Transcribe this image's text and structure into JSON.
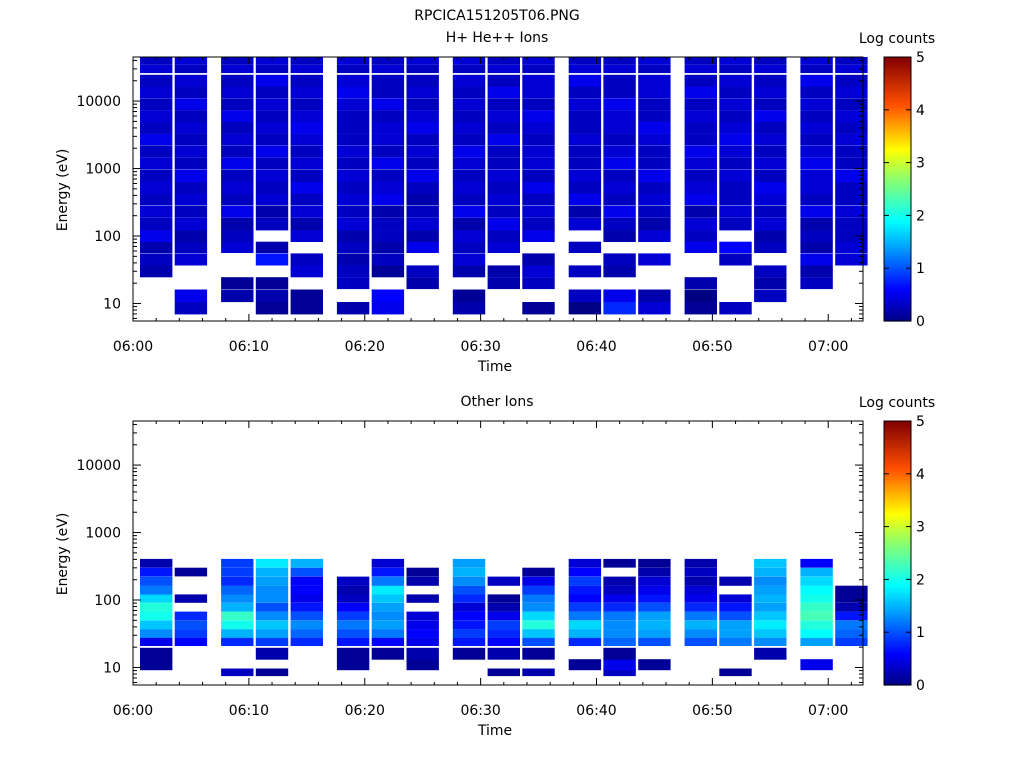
{
  "figure": {
    "title": "RPCICA151205T06.PNG"
  },
  "chart_data": [
    {
      "type": "heatmap",
      "title": "H+ He++ Ions",
      "xlabel": "Time",
      "ylabel": "Energy (eV)",
      "x_range": [
        "06:00",
        "07:03"
      ],
      "x_ticks": [
        "06:00",
        "06:10",
        "06:20",
        "06:30",
        "06:40",
        "06:50",
        "07:00"
      ],
      "y_scale": "log",
      "y_range": [
        5.5,
        45000
      ],
      "y_ticks": [
        "10",
        "100",
        "1000",
        "10000"
      ],
      "colorbar": {
        "label": "Log counts",
        "range": [
          0,
          5
        ],
        "ticks": [
          "0",
          "1",
          "2",
          "3",
          "4",
          "5"
        ]
      },
      "time_columns": [
        "06:02",
        "06:05",
        "06:09",
        "06:12",
        "06:15",
        "06:19",
        "06:22",
        "06:25",
        "06:29",
        "06:32",
        "06:35",
        "06:39",
        "06:42",
        "06:45",
        "06:49",
        "06:52",
        "06:55",
        "06:59",
        "07:02"
      ],
      "energy_rows": [
        {
          "eV": 8.5,
          "v": [
            -1,
            0.3,
            -1,
            0.1,
            0.1,
            0.2,
            0.5,
            -1,
            0.2,
            -1,
            0.1,
            0.0,
            0.8,
            0.4,
            0.1,
            0.3,
            -1,
            -1,
            -1
          ]
        },
        {
          "eV": 13,
          "v": [
            -1,
            0.5,
            0.2,
            0.2,
            0.1,
            -1,
            0.6,
            -1,
            0.1,
            -1,
            -1,
            0.3,
            0.5,
            0.2,
            0.0,
            -1,
            0.3,
            -1,
            -1
          ]
        },
        {
          "eV": 20,
          "v": [
            -1,
            -1,
            0.1,
            0.1,
            -1,
            0.3,
            -1,
            0.2,
            -1,
            0.2,
            0.3,
            -1,
            -1,
            -1,
            0.2,
            -1,
            0.2,
            0.3,
            -1
          ]
        },
        {
          "eV": 30,
          "v": [
            0.2,
            -1,
            -1,
            -1,
            0.4,
            0.3,
            0.1,
            0.3,
            0.2,
            0.2,
            0.4,
            0.3,
            0.2,
            -1,
            -1,
            -1,
            0.3,
            0.2,
            -1
          ]
        },
        {
          "eV": 45,
          "v": [
            0.3,
            0.4,
            -1,
            0.7,
            0.3,
            0.2,
            0.3,
            -1,
            0.4,
            -1,
            0.2,
            -1,
            0.3,
            0.4,
            -1,
            0.3,
            -1,
            0.5,
            0.4
          ]
        },
        {
          "eV": 68,
          "v": [
            0.2,
            0.3,
            0.4,
            0.2,
            -1,
            0.3,
            0.2,
            0.5,
            0.3,
            0.4,
            -1,
            0.3,
            -1,
            -1,
            0.5,
            0.6,
            0.3,
            0.2,
            0.4
          ]
        },
        {
          "eV": 100,
          "v": [
            0.5,
            0.2,
            0.3,
            -1,
            0.4,
            0.2,
            0.3,
            0.2,
            0.4,
            0.3,
            0.5,
            -1,
            0.2,
            0.4,
            0.3,
            -1,
            0.2,
            0.3,
            0.3
          ]
        },
        {
          "eV": 150,
          "v": [
            0.3,
            0.4,
            0.2,
            0.3,
            0.2,
            0.4,
            0.3,
            0.4,
            0.2,
            0.5,
            0.3,
            0.4,
            0.3,
            0.2,
            0.4,
            0.3,
            0.4,
            0.2,
            0.3
          ]
        },
        {
          "eV": 230,
          "v": [
            0.4,
            0.3,
            0.5,
            0.2,
            0.4,
            0.3,
            0.2,
            0.3,
            0.5,
            0.3,
            0.4,
            0.2,
            0.5,
            0.3,
            0.2,
            0.4,
            0.3,
            0.5,
            0.4
          ]
        },
        {
          "eV": 350,
          "v": [
            0.3,
            0.4,
            0.3,
            0.4,
            0.3,
            0.4,
            0.5,
            0.2,
            0.3,
            0.4,
            0.3,
            0.5,
            0.3,
            0.4,
            0.5,
            0.3,
            0.4,
            0.3,
            0.3
          ]
        },
        {
          "eV": 520,
          "v": [
            0.4,
            0.3,
            0.4,
            0.3,
            0.5,
            0.3,
            0.4,
            0.3,
            0.4,
            0.3,
            0.5,
            0.3,
            0.4,
            0.3,
            0.4,
            0.3,
            0.5,
            0.4,
            0.3
          ]
        },
        {
          "eV": 780,
          "v": [
            0.3,
            0.5,
            0.3,
            0.4,
            0.3,
            0.4,
            0.3,
            0.5,
            0.3,
            0.4,
            0.3,
            0.4,
            0.3,
            0.5,
            0.3,
            0.4,
            0.3,
            0.4,
            0.5
          ]
        },
        {
          "eV": 1200,
          "v": [
            0.4,
            0.3,
            0.5,
            0.3,
            0.4,
            0.3,
            0.5,
            0.3,
            0.4,
            0.3,
            0.4,
            0.3,
            0.5,
            0.3,
            0.4,
            0.3,
            0.4,
            0.5,
            0.3
          ]
        },
        {
          "eV": 1800,
          "v": [
            0.3,
            0.4,
            0.3,
            0.5,
            0.3,
            0.4,
            0.3,
            0.4,
            0.5,
            0.3,
            0.4,
            0.3,
            0.4,
            0.3,
            0.5,
            0.4,
            0.3,
            0.4,
            0.3
          ]
        },
        {
          "eV": 2700,
          "v": [
            0.5,
            0.3,
            0.4,
            0.3,
            0.4,
            0.3,
            0.4,
            0.3,
            0.3,
            0.5,
            0.3,
            0.4,
            0.3,
            0.4,
            0.3,
            0.5,
            0.4,
            0.3,
            0.4
          ]
        },
        {
          "eV": 4000,
          "v": [
            0.3,
            0.4,
            0.3,
            0.4,
            0.5,
            0.3,
            0.4,
            0.5,
            0.4,
            0.3,
            0.4,
            0.3,
            0.4,
            0.5,
            0.3,
            0.4,
            0.3,
            0.4,
            0.3
          ]
        },
        {
          "eV": 6000,
          "v": [
            0.4,
            0.3,
            0.5,
            0.3,
            0.4,
            0.3,
            0.3,
            0.4,
            0.3,
            0.4,
            0.5,
            0.3,
            0.4,
            0.3,
            0.4,
            0.3,
            0.5,
            0.3,
            0.4
          ]
        },
        {
          "eV": 9000,
          "v": [
            0.3,
            0.5,
            0.3,
            0.4,
            0.3,
            0.4,
            0.5,
            0.3,
            0.4,
            0.3,
            0.3,
            0.4,
            0.5,
            0.3,
            0.3,
            0.4,
            0.3,
            0.4,
            0.3
          ]
        },
        {
          "eV": 13500,
          "v": [
            0.4,
            0.3,
            0.4,
            0.3,
            0.4,
            0.5,
            0.3,
            0.4,
            0.3,
            0.5,
            0.4,
            0.3,
            0.3,
            0.4,
            0.5,
            0.3,
            0.4,
            0.3,
            0.4
          ]
        },
        {
          "eV": 20000,
          "v": [
            0.3,
            0.4,
            0.3,
            0.5,
            0.3,
            0.4,
            0.3,
            0.3,
            0.4,
            0.3,
            0.4,
            0.5,
            0.3,
            0.4,
            0.3,
            0.4,
            0.3,
            0.5,
            0.3
          ]
        },
        {
          "eV": 30000,
          "v": [
            0.4,
            0.3,
            0.4,
            0.3,
            0.4,
            0.3,
            0.4,
            0.3,
            0.3,
            0.4,
            0.3,
            0.4,
            0.4,
            0.3,
            0.4,
            0.3,
            0.4,
            0.3,
            0.4
          ]
        },
        {
          "eV": 40000,
          "v": [
            0.3,
            0.4,
            0.3,
            0.4,
            0.3,
            0.4,
            0.3,
            0.4,
            0.4,
            0.3,
            0.4,
            0.3,
            0.3,
            0.4,
            0.3,
            0.4,
            0.3,
            0.4,
            0.3
          ]
        }
      ]
    },
    {
      "type": "heatmap",
      "title": "Other Ions",
      "xlabel": "Time",
      "ylabel": "Energy (eV)",
      "x_range": [
        "06:00",
        "07:03"
      ],
      "x_ticks": [
        "06:00",
        "06:10",
        "06:20",
        "06:30",
        "06:40",
        "06:50",
        "07:00"
      ],
      "y_scale": "log",
      "y_range": [
        5.5,
        45000
      ],
      "y_ticks": [
        "10",
        "100",
        "1000",
        "10000"
      ],
      "colorbar": {
        "label": "Log counts",
        "range": [
          0,
          5
        ],
        "ticks": [
          "0",
          "1",
          "2",
          "3",
          "4",
          "5"
        ]
      },
      "time_columns": [
        "06:02",
        "06:05",
        "06:09",
        "06:12",
        "06:15",
        "06:19",
        "06:22",
        "06:25",
        "06:29",
        "06:32",
        "06:35",
        "06:39",
        "06:42",
        "06:45",
        "06:49",
        "06:52",
        "06:55",
        "06:59",
        "07:02"
      ],
      "energy_rows": [
        {
          "eV": 8.5,
          "v": [
            -1,
            -1,
            0.3,
            0.1,
            -1,
            -1,
            -1,
            -1,
            -1,
            0.1,
            0.2,
            -1,
            0.3,
            -1,
            -1,
            0.1,
            -1,
            -1,
            -1
          ]
        },
        {
          "eV": 11,
          "v": [
            0.1,
            -1,
            -1,
            -1,
            -1,
            0.1,
            -1,
            0.1,
            -1,
            -1,
            -1,
            0.1,
            0.5,
            0.1,
            -1,
            -1,
            -1,
            0.5,
            -1
          ]
        },
        {
          "eV": 16,
          "v": [
            0.1,
            -1,
            -1,
            0.2,
            -1,
            0.1,
            0.1,
            0.2,
            0.1,
            0.2,
            0.1,
            -1,
            0.1,
            -1,
            -1,
            -1,
            0.2,
            -1,
            -1
          ]
        },
        {
          "eV": 24,
          "v": [
            0.5,
            0.6,
            0.8,
            0.9,
            0.8,
            0.7,
            0.6,
            0.5,
            0.7,
            0.6,
            1.0,
            0.8,
            1.1,
            1.0,
            1.0,
            1.2,
            1.3,
            1.4,
            0.9
          ]
        },
        {
          "eV": 32,
          "v": [
            1.3,
            0.9,
            1.5,
            1.4,
            1.1,
            1.0,
            1.2,
            0.6,
            0.9,
            0.8,
            1.6,
            1.5,
            1.3,
            1.4,
            1.3,
            1.4,
            1.6,
            1.9,
            1.1
          ]
        },
        {
          "eV": 43,
          "v": [
            1.6,
            1.0,
            2.0,
            1.6,
            1.3,
            1.2,
            1.4,
            0.5,
            0.7,
            0.9,
            2.1,
            1.7,
            1.3,
            1.5,
            1.5,
            1.4,
            1.8,
            2.1,
            1.2
          ]
        },
        {
          "eV": 58,
          "v": [
            2.0,
            0.8,
            2.2,
            1.3,
            1.0,
            0.9,
            1.3,
            0.4,
            0.6,
            0.5,
            1.7,
            1.2,
            1.2,
            1.4,
            1.2,
            1.0,
            1.6,
            2.3,
            0.7
          ]
        },
        {
          "eV": 78,
          "v": [
            2.1,
            -1,
            1.5,
            1.0,
            0.7,
            0.6,
            1.4,
            -1,
            0.4,
            0.2,
            1.3,
            0.9,
            0.8,
            1.0,
            0.8,
            0.7,
            1.4,
            2.2,
            0.2
          ]
        },
        {
          "eV": 105,
          "v": [
            1.7,
            0.2,
            1.3,
            1.3,
            0.5,
            0.3,
            1.6,
            0.2,
            0.8,
            0.1,
            1.2,
            0.6,
            0.5,
            0.7,
            0.5,
            0.4,
            1.5,
            2.0,
            0.1
          ]
        },
        {
          "eV": 140,
          "v": [
            1.2,
            -1,
            1.1,
            1.3,
            0.6,
            0.2,
            1.8,
            -1,
            1.0,
            -1,
            0.9,
            0.7,
            0.3,
            0.5,
            0.4,
            -1,
            1.4,
            1.9,
            0.1
          ]
        },
        {
          "eV": 190,
          "v": [
            1.0,
            -1,
            0.8,
            1.4,
            0.6,
            0.3,
            1.2,
            0.2,
            1.3,
            0.3,
            0.5,
            0.9,
            0.2,
            0.4,
            0.2,
            0.2,
            1.3,
            1.7,
            -1
          ]
        },
        {
          "eV": 260,
          "v": [
            0.7,
            0.1,
            0.9,
            1.5,
            1.0,
            -1,
            0.7,
            0.1,
            1.5,
            -1,
            0.1,
            0.6,
            -1,
            0.2,
            0.3,
            -1,
            1.5,
            1.5,
            -1
          ]
        },
        {
          "eV": 350,
          "v": [
            0.2,
            -1,
            0.9,
            1.8,
            1.5,
            -1,
            0.4,
            -1,
            1.4,
            -1,
            -1,
            0.4,
            0.1,
            0.1,
            0.2,
            -1,
            1.6,
            0.6,
            -1
          ]
        }
      ]
    }
  ]
}
